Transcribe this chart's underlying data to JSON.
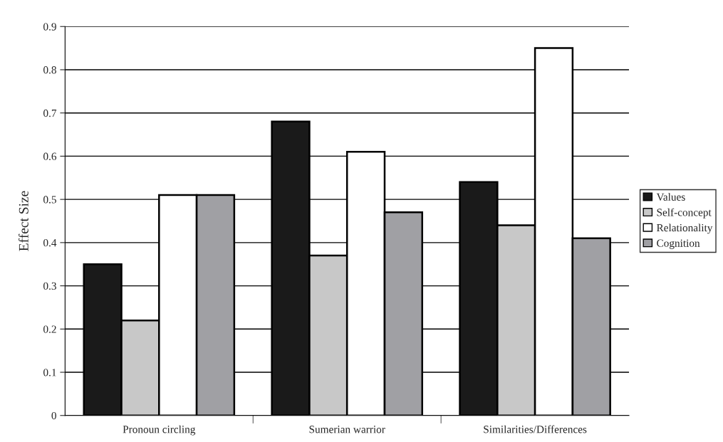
{
  "chart_data": {
    "type": "bar",
    "ylabel": "Effect Size",
    "categories": [
      "Pronoun circling",
      "Sumerian warrior",
      "Similarities/Differences"
    ],
    "series": [
      {
        "name": "Values",
        "color": "#1a1a1a",
        "values": [
          0.35,
          0.68,
          0.54
        ]
      },
      {
        "name": "Self-concept",
        "color": "#c8c8c8",
        "values": [
          0.22,
          0.37,
          0.44
        ]
      },
      {
        "name": "Relationality",
        "color": "#ffffff",
        "values": [
          0.51,
          0.61,
          0.85
        ]
      },
      {
        "name": "Cognition",
        "color": "#a0a0a4",
        "values": [
          0.51,
          0.47,
          0.41
        ]
      }
    ],
    "ylim": [
      0,
      0.9
    ],
    "yticks": [
      0,
      0.1,
      0.2,
      0.3,
      0.4,
      0.5,
      0.6,
      0.7,
      0.8,
      0.9
    ],
    "grid": "y",
    "legend": "right"
  }
}
